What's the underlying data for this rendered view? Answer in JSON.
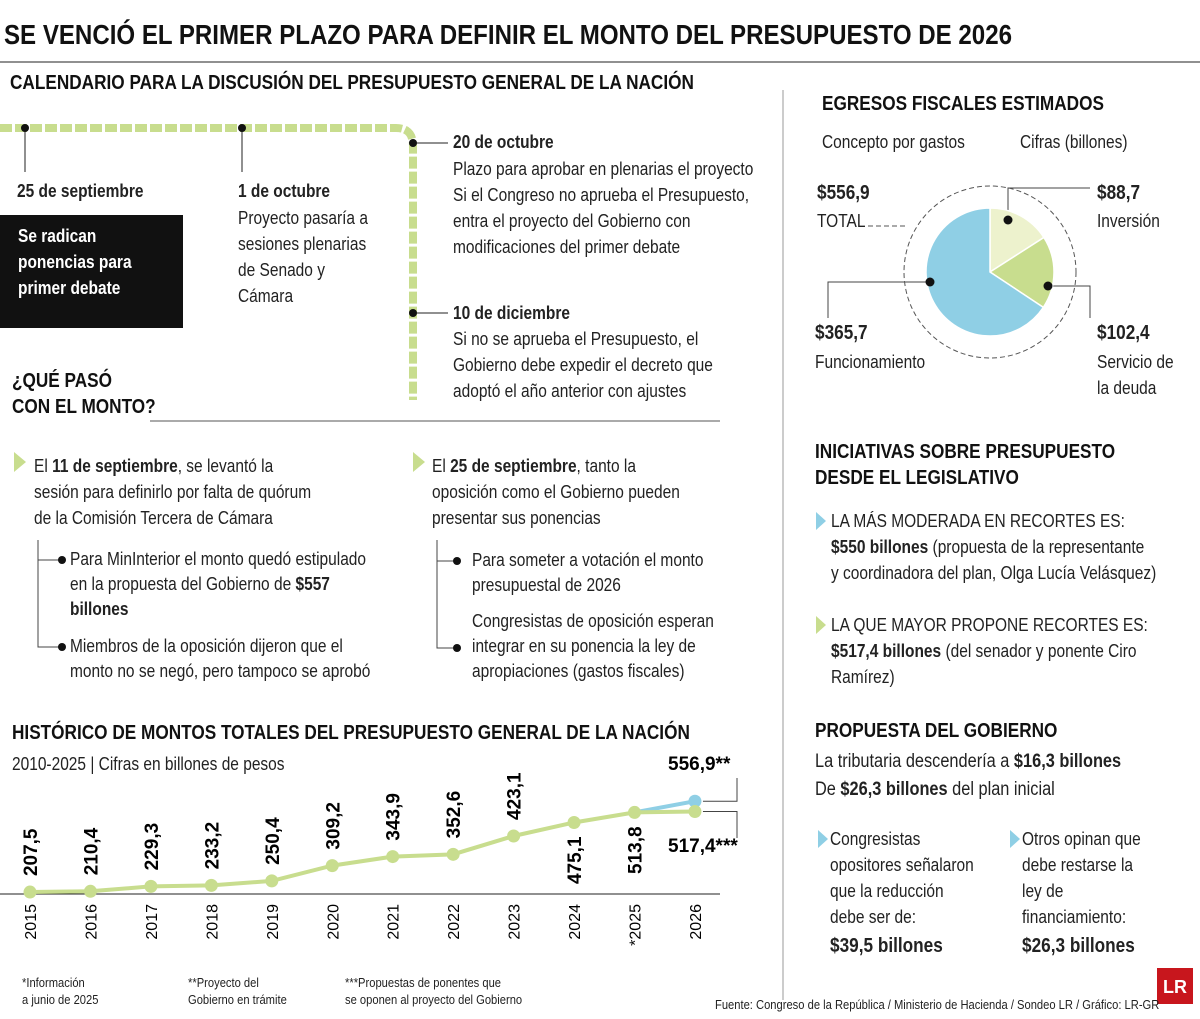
{
  "title": "SE VENCIÓ EL PRIMER PLAZO PARA DEFINIR EL MONTO DEL PRESUPUESTO DE 2026",
  "calendar": {
    "title": "CALENDARIO PARA LA DISCUSIÓN DEL PRESUPUESTO GENERAL DE LA NACIÓN",
    "events": [
      {
        "date": "25 de septiembre",
        "lines": [
          "Se radican",
          "ponencias para",
          "primer debate"
        ]
      },
      {
        "date": "1 de octubre",
        "lines": [
          "Proyecto pasaría a",
          "sesiones plenarias",
          "de Senado y",
          "Cámara"
        ]
      },
      {
        "date": "20 de octubre",
        "lines": [
          "Plazo para aprobar en plenarias el proyecto",
          "Si el Congreso no aprueba el Presupuesto,",
          "entra el proyecto del Gobierno con",
          "modificaciones del primer debate"
        ]
      },
      {
        "date": "10 de diciembre",
        "lines": [
          "Si no se aprueba el Presupuesto, el",
          "Gobierno debe expedir el decreto que",
          "adoptó el año anterior con ajustes"
        ]
      }
    ]
  },
  "que_paso": {
    "title_lines": [
      "¿QUÉ PASÓ",
      "CON EL MONTO?"
    ],
    "columns": [
      {
        "intro": [
          [
            "El ",
            {
              "b": "11 de septiembre"
            },
            ", se levantó la"
          ],
          "sesión para definirlo por falta de quórum",
          "de la Comisión Tercera de Cámara"
        ],
        "bullets": [
          [
            "Para MinInterior el monto quedó estipulado",
            [
              "en la propuesta del Gobierno de ",
              {
                "b": "$557"
              }
            ],
            [
              {
                "b": "billones"
              }
            ]
          ],
          [
            "Miembros de la oposición dijeron que el",
            "monto no se negó, pero tampoco se aprobó"
          ]
        ]
      },
      {
        "intro": [
          [
            "El ",
            {
              "b": "25 de septiembre"
            },
            ", tanto la"
          ],
          "oposición como el Gobierno pueden",
          "presentar sus ponencias"
        ],
        "bullets": [
          [
            "Para someter a votación el monto",
            "presupuestal de 2026"
          ],
          [
            "Congresistas de oposición esperan",
            "integrar en su ponencia la ley de",
            "apropiaciones (gastos fiscales)"
          ]
        ]
      }
    ]
  },
  "iniciativas": {
    "title_lines": [
      "INICIATIVAS SOBRE PRESUPUESTO",
      "DESDE EL LEGISLATIVO"
    ],
    "items": [
      [
        "LA MÁS MODERADA EN RECORTES ES:",
        [
          {
            "b": "$550 billones"
          },
          " (propuesta de la representante"
        ],
        "y coordinadora del plan, Olga Lucía Velásquez)"
      ],
      [
        "LA QUE MAYOR PROPONE RECORTES ES:",
        [
          {
            "b": "$517,4 billones"
          },
          " (del senador y ponente Ciro"
        ],
        "Ramírez)"
      ]
    ]
  },
  "propuesta": {
    "title": "PROPUESTA DEL GOBIERNO",
    "lines": [
      [
        "La tributaria descendería a ",
        {
          "b": "$16,3 billones"
        }
      ],
      [
        "De ",
        {
          "b": "$26,3 billones"
        },
        " del plan inicial"
      ]
    ],
    "items": [
      {
        "lines": [
          "Congresistas",
          "opositores señalaron",
          "que la reducción",
          "debe ser de:"
        ],
        "amount": "$39,5 billones"
      },
      {
        "lines": [
          "Otros opinan que",
          "debe restarse la",
          "ley de",
          "financiamiento:"
        ],
        "amount": "$26,3 billones"
      }
    ]
  },
  "footnotes": [
    [
      "*Información",
      " a junio de 2025"
    ],
    [
      "**Proyecto del",
      "Gobierno en trámite"
    ],
    [
      "***Propuestas de ponentes que",
      "se oponen al proyecto del Gobierno"
    ]
  ],
  "source": "Fuente: Congreso de la República / Ministerio de Hacienda / Sondeo LR / Gráfico: LR-GR",
  "logo": "LR",
  "chart_data": [
    {
      "type": "pie",
      "title": "EGRESOS FISCALES ESTIMADOS",
      "category_heading": "Concepto por gastos",
      "value_heading": "Cifras (billones)",
      "total": 556.9,
      "total_label": "$556,9",
      "total_name": "TOTAL",
      "categories": [
        "Inversión",
        "Servicio de la deuda",
        "Funcionamiento"
      ],
      "values": [
        88.7,
        102.4,
        365.7
      ],
      "value_labels": [
        "$88,7",
        "$102,4",
        "$365,7"
      ],
      "colors": [
        "#edf2cd",
        "#c8dd8e",
        "#8fcfe5"
      ]
    },
    {
      "type": "line",
      "title": "HISTÓRICO DE MONTOS TOTALES DEL PRESUPUESTO GENERAL DE LA NACIÓN",
      "subtitle": "2010-2025 | Cifras en billones de pesos",
      "categories": [
        "2015",
        "2016",
        "2017",
        "2018",
        "2019",
        "2020",
        "2021",
        "2022",
        "2023",
        "2024",
        "*2025",
        "2026"
      ],
      "ylim": [
        200,
        600
      ],
      "series": [
        {
          "color": "#8fcfe5",
          "values": [
            null,
            null,
            null,
            null,
            null,
            null,
            null,
            null,
            null,
            null,
            513.8,
            556.9
          ],
          "value_labels": [
            null,
            null,
            null,
            null,
            null,
            null,
            null,
            null,
            null,
            null,
            null,
            "556,9**"
          ]
        },
        {
          "color": "#c8dd8e",
          "values": [
            207.5,
            210.4,
            229.3,
            233.2,
            250.4,
            309.2,
            343.9,
            352.6,
            423.1,
            475.1,
            513.8,
            517.4
          ],
          "value_labels": [
            "207,5",
            "210,4",
            "229,3",
            "233,2",
            "250,4",
            "309,2",
            "343,9",
            "352,6",
            "423,1",
            "475,1",
            "513,8",
            "517,4***"
          ]
        }
      ]
    }
  ]
}
